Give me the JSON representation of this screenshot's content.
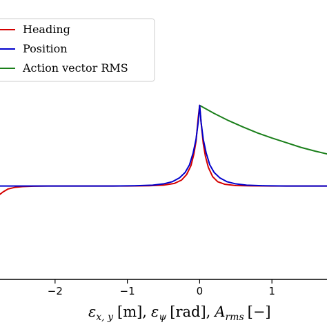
{
  "chart_data": {
    "type": "line",
    "title": "",
    "xlabel_parts": {
      "eps1": "ε",
      "sub1": "x, y",
      "unit1": "[m],",
      "eps2": "ε",
      "sub2": "ψ",
      "unit2": "[rad],",
      "a": "A",
      "sub3": "rms",
      "unit3": "[−]"
    },
    "x_ticks": [
      {
        "value": -2,
        "label": "−2"
      },
      {
        "value": -1,
        "label": "−1"
      },
      {
        "value": 0,
        "label": "0"
      },
      {
        "value": 1,
        "label": "1"
      }
    ],
    "xlim": [
      -2.8,
      1.8
    ],
    "ylim": [
      -0.22,
      0.43
    ],
    "y_ticks_visible": false,
    "grid": false,
    "legend_position": "top-left",
    "series": [
      {
        "name": "Heading",
        "color": "#d40000",
        "x": [
          -2.78,
          -2.72,
          -2.65,
          -2.55,
          -2.45,
          -2.3,
          -2.1,
          -1.8,
          -1.4,
          -1.0,
          -0.7,
          -0.5,
          -0.35,
          -0.25,
          -0.18,
          -0.12,
          -0.08,
          -0.05,
          -0.02,
          0.0,
          0.02,
          0.05,
          0.08,
          0.12,
          0.18,
          0.25,
          0.35,
          0.5,
          0.7,
          1.0,
          1.4,
          1.8
        ],
        "y": [
          -0.022,
          -0.014,
          -0.007,
          -0.003,
          -0.0015,
          -0.0005,
          -0.0001,
          0.0,
          0.0,
          0.0,
          0.0006,
          0.002,
          0.006,
          0.014,
          0.027,
          0.048,
          0.075,
          0.105,
          0.16,
          0.19,
          0.15,
          0.1,
          0.07,
          0.044,
          0.022,
          0.01,
          0.004,
          0.001,
          0.0003,
          0.0,
          0.0,
          0.0
        ]
      },
      {
        "name": "Position",
        "color": "#0000cc",
        "x": [
          -2.8,
          -2.4,
          -2.0,
          -1.6,
          -1.2,
          -0.9,
          -0.65,
          -0.5,
          -0.38,
          -0.28,
          -0.2,
          -0.14,
          -0.09,
          -0.05,
          -0.02,
          0.0,
          0.02,
          0.05,
          0.09,
          0.14,
          0.2,
          0.28,
          0.38,
          0.5,
          0.65,
          0.9,
          1.2,
          1.8
        ],
        "y": [
          0.0,
          0.0,
          0.0,
          0.0,
          0.0,
          0.0006,
          0.002,
          0.005,
          0.01,
          0.019,
          0.032,
          0.05,
          0.078,
          0.11,
          0.15,
          0.19,
          0.15,
          0.11,
          0.078,
          0.05,
          0.032,
          0.019,
          0.01,
          0.005,
          0.002,
          0.0006,
          0.0,
          0.0
        ]
      },
      {
        "name": "Action vector RMS",
        "color": "#1a7f1a",
        "x": [
          0.0,
          0.2,
          0.4,
          0.6,
          0.8,
          1.0,
          1.2,
          1.4,
          1.6,
          1.8
        ],
        "y": [
          0.19,
          0.171,
          0.154,
          0.139,
          0.125,
          0.113,
          0.102,
          0.091,
          0.082,
          0.074
        ]
      }
    ]
  }
}
